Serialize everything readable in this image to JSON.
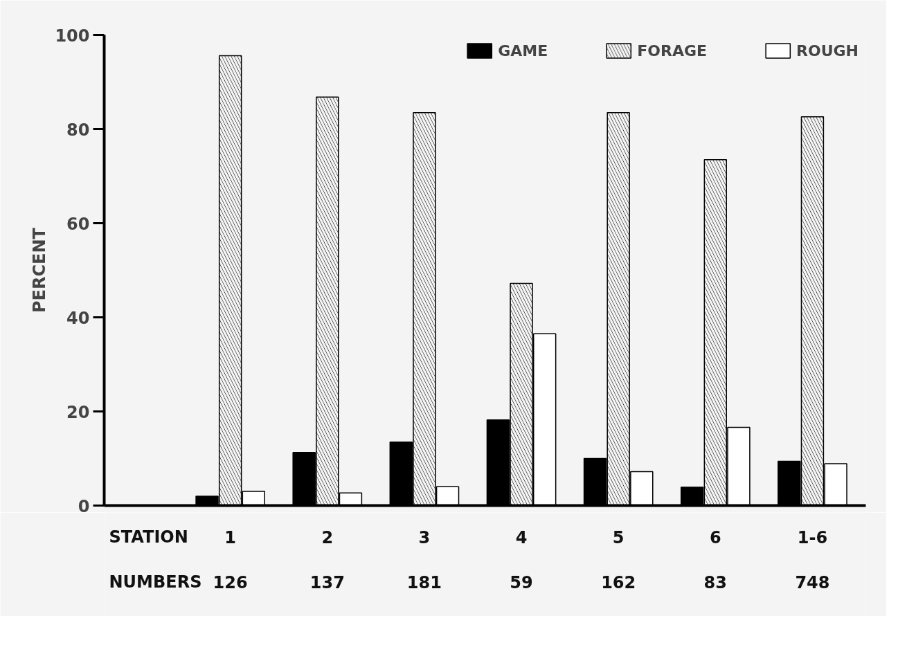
{
  "chart_data": {
    "type": "bar",
    "ylabel": "PERCENT",
    "xlabel": "STATION",
    "categories": [
      "1",
      "2",
      "3",
      "4",
      "5",
      "6",
      "1-6"
    ],
    "series": [
      {
        "name": "GAME",
        "color": "#000000",
        "values": [
          2,
          11.3,
          13.5,
          18.2,
          10,
          3.9,
          9.4
        ]
      },
      {
        "name": "FORAGE",
        "color": "#000000",
        "values": [
          95.6,
          86.8,
          83.5,
          47.2,
          83.5,
          73.5,
          82.6
        ]
      },
      {
        "name": "ROUGH",
        "color": "#ffffff",
        "values": [
          3,
          2.7,
          4,
          36.5,
          7.2,
          16.6,
          8.9
        ]
      }
    ],
    "ylim": [
      0,
      100
    ],
    "yticks": [
      0,
      20,
      40,
      60,
      80,
      100
    ],
    "legend": "top right",
    "grid": false,
    "annotations": [
      "NUMBERS",
      "126",
      "137",
      "181",
      "59",
      "162",
      "83",
      "748"
    ]
  }
}
